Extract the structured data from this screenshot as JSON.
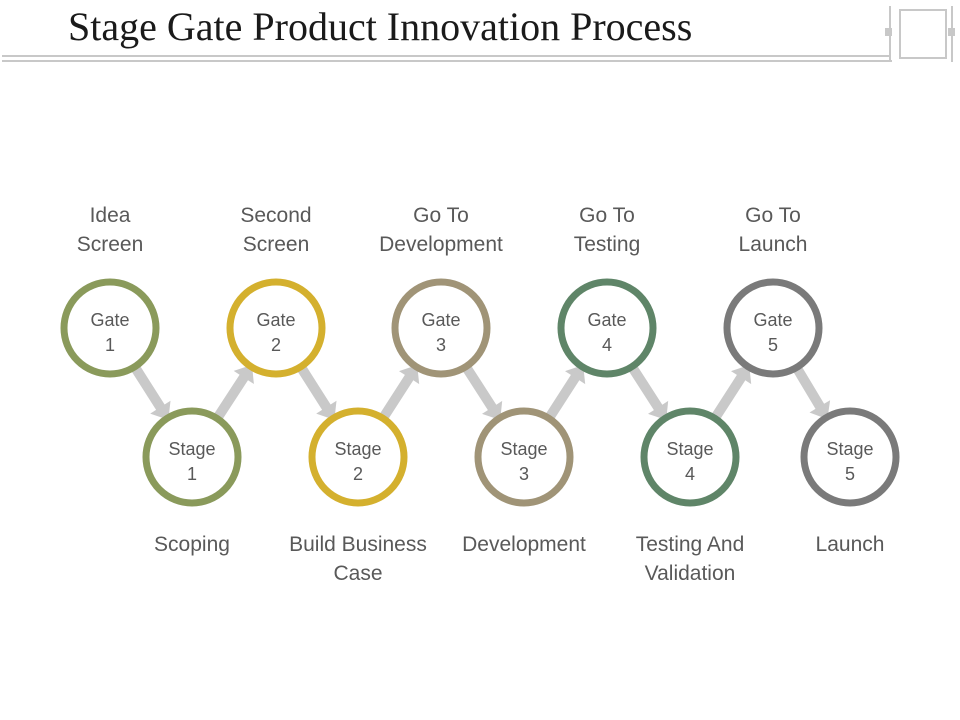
{
  "title": "Stage Gate Product Innovation Process",
  "gates": [
    {
      "label": "Gate",
      "number": "1",
      "caption": [
        "Idea",
        "Screen"
      ],
      "color": "#8a9a5b"
    },
    {
      "label": "Gate",
      "number": "2",
      "caption": [
        "Second",
        "Screen"
      ],
      "color": "#d4b02e"
    },
    {
      "label": "Gate",
      "number": "3",
      "caption": [
        "Go To",
        "Development"
      ],
      "color": "#a09477"
    },
    {
      "label": "Gate",
      "number": "4",
      "caption": [
        "Go To",
        "Testing"
      ],
      "color": "#5f8568"
    },
    {
      "label": "Gate",
      "number": "5",
      "caption": [
        "Go To",
        "Launch"
      ],
      "color": "#7a7a7a"
    }
  ],
  "stages": [
    {
      "label": "Stage",
      "number": "1",
      "caption": [
        "Scoping"
      ],
      "color": "#8a9a5b"
    },
    {
      "label": "Stage",
      "number": "2",
      "caption": [
        "Build Business",
        "Case"
      ],
      "color": "#d4b02e"
    },
    {
      "label": "Stage",
      "number": "3",
      "caption": [
        "Development"
      ],
      "color": "#a09477"
    },
    {
      "label": "Stage",
      "number": "4",
      "caption": [
        "Testing And",
        "Validation"
      ],
      "color": "#5f8568"
    },
    {
      "label": "Stage",
      "number": "5",
      "caption": [
        "Launch"
      ],
      "color": "#7a7a7a"
    }
  ],
  "arrow_color": "#c9c9c9"
}
